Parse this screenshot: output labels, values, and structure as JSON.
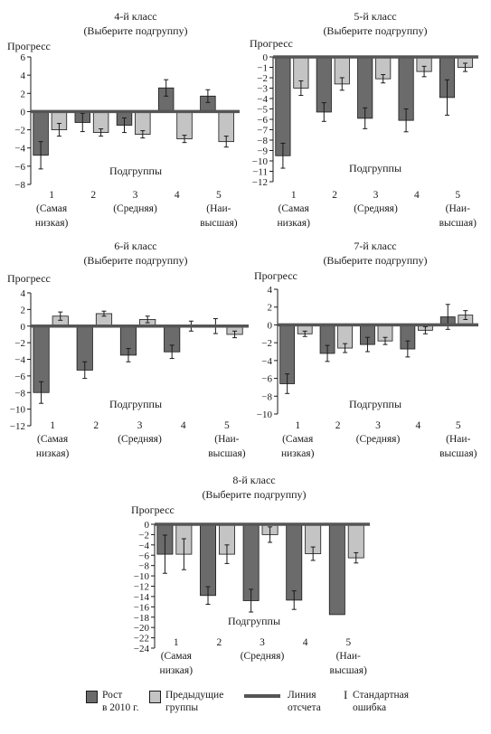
{
  "colors": {
    "growth": "#6b6b6b",
    "previous": "#c4c4c4",
    "baseline": "#555555",
    "ink": "#1a1a1a"
  },
  "legend": {
    "growth_label_1": "Рост",
    "growth_label_2": "в 2010 г.",
    "previous_label_1": "Предыдущие",
    "previous_label_2": "группы",
    "baseline_label_1": "Линия",
    "baseline_label_2": "отсчета",
    "error_symbol": "I",
    "error_label_1": "Стандартная",
    "error_label_2": "ошибка"
  },
  "chart_data": [
    {
      "type": "bar",
      "title": "4-й класс",
      "subtitle": "(Выберите подгруппу)",
      "ylabel": "Прогресс",
      "xlabel": "Подгруппы",
      "ylim": [
        -8,
        6
      ],
      "yticks": [
        6,
        4,
        2,
        0,
        -2,
        -4,
        -6,
        -8
      ],
      "categories": [
        "1",
        "2",
        "3",
        "4",
        "5"
      ],
      "category_notes": [
        "(Самая низкая)",
        "",
        "(Средняя)",
        "",
        "(Наи-высшая)"
      ],
      "series": [
        {
          "name": "Рост в 2010 г.",
          "values": [
            -4.8,
            -1.2,
            -1.5,
            2.6,
            1.7
          ],
          "errors": [
            1.5,
            1.0,
            0.8,
            0.9,
            0.7
          ]
        },
        {
          "name": "Предыдущие группы",
          "values": [
            -2.0,
            -2.3,
            -2.5,
            -3.0,
            -3.3
          ],
          "errors": [
            0.7,
            0.4,
            0.4,
            0.4,
            0.6
          ]
        }
      ]
    },
    {
      "type": "bar",
      "title": "5-й класс",
      "subtitle": "(Выберите подгруппу)",
      "ylabel": "Прогресс",
      "xlabel": "Подгруппы",
      "ylim": [
        -12,
        0
      ],
      "yticks": [
        0,
        -1,
        -2,
        -3,
        -4,
        -5,
        -6,
        -7,
        -8,
        -9,
        -10,
        -11,
        -12
      ],
      "categories": [
        "1",
        "2",
        "3",
        "4",
        "5"
      ],
      "category_notes": [
        "(Самая низкая)",
        "",
        "(Средняя)",
        "",
        "(Наи-высшая)"
      ],
      "series": [
        {
          "name": "Рост в 2010 г.",
          "values": [
            -9.5,
            -5.3,
            -5.9,
            -6.1,
            -3.9
          ],
          "errors": [
            1.2,
            0.9,
            1.0,
            1.1,
            1.7
          ]
        },
        {
          "name": "Предыдущие группы",
          "values": [
            -3.0,
            -2.6,
            -2.1,
            -1.4,
            -1.0
          ],
          "errors": [
            0.7,
            0.6,
            0.4,
            0.5,
            0.4
          ]
        }
      ]
    },
    {
      "type": "bar",
      "title": "6-й класс",
      "subtitle": "(Выберите подгруппу)",
      "ylabel": "Прогресс",
      "xlabel": "Подгруппы",
      "ylim": [
        -12,
        4
      ],
      "yticks": [
        4,
        2,
        0,
        -2,
        -4,
        -6,
        -8,
        -10,
        -12
      ],
      "categories": [
        "1",
        "2",
        "3",
        "4",
        "5"
      ],
      "category_notes": [
        "(Самая низкая)",
        "",
        "(Средняя)",
        "",
        "(Наи-высшая)"
      ],
      "series": [
        {
          "name": "Рост в 2010 г.",
          "values": [
            -8.0,
            -5.3,
            -3.5,
            -3.1,
            0.0
          ],
          "errors": [
            1.3,
            1.0,
            0.8,
            0.8,
            0.9
          ]
        },
        {
          "name": "Предыдущие группы",
          "values": [
            1.2,
            1.5,
            0.8,
            0.0,
            -1.0
          ],
          "errors": [
            0.5,
            0.3,
            0.4,
            0.6,
            0.4
          ]
        }
      ]
    },
    {
      "type": "bar",
      "title": "7-й класс",
      "subtitle": "(Выберите подгруппу)",
      "ylabel": "Прогресс",
      "xlabel": "Подгруппы",
      "ylim": [
        -10,
        4
      ],
      "yticks": [
        4,
        2,
        0,
        -2,
        -4,
        -6,
        -8,
        -10
      ],
      "categories": [
        "1",
        "2",
        "3",
        "4",
        "5"
      ],
      "category_notes": [
        "(Самая низкая)",
        "",
        "(Средняя)",
        "",
        "(Наи-высшая)"
      ],
      "series": [
        {
          "name": "Рост в 2010 г.",
          "values": [
            -6.6,
            -3.2,
            -2.2,
            -2.7,
            0.9
          ],
          "errors": [
            1.1,
            0.9,
            0.8,
            0.9,
            1.4
          ]
        },
        {
          "name": "Предыдущие группы",
          "values": [
            -1.0,
            -2.6,
            -1.8,
            -0.6,
            1.1
          ],
          "errors": [
            0.3,
            0.5,
            0.4,
            0.4,
            0.5
          ]
        }
      ]
    },
    {
      "type": "bar",
      "title": "8-й класс",
      "subtitle": "(Выберите подгруппу)",
      "ylabel": "Прогресс",
      "xlabel": "Подгруппы",
      "ylim": [
        -24,
        0
      ],
      "yticks": [
        0,
        -2,
        -4,
        -6,
        -8,
        -10,
        -12,
        -14,
        -16,
        -18,
        -20,
        -22,
        -24
      ],
      "categories": [
        "1",
        "2",
        "3",
        "4",
        "5"
      ],
      "category_notes": [
        "(Самая низкая)",
        "",
        "(Средняя)",
        "",
        "(Наи-высшая)"
      ],
      "series": [
        {
          "name": "Рост в 2010 г.",
          "values": [
            -5.8,
            -13.8,
            -14.8,
            -14.7,
            -17.5
          ],
          "errors": [
            3.7,
            1.7,
            2.2,
            1.8,
            0.0
          ]
        },
        {
          "name": "Предыдущие группы",
          "values": [
            -5.8,
            -5.8,
            -2.0,
            -5.7,
            -6.5
          ],
          "errors": [
            3.0,
            1.8,
            1.5,
            1.3,
            1.0
          ]
        }
      ]
    }
  ]
}
